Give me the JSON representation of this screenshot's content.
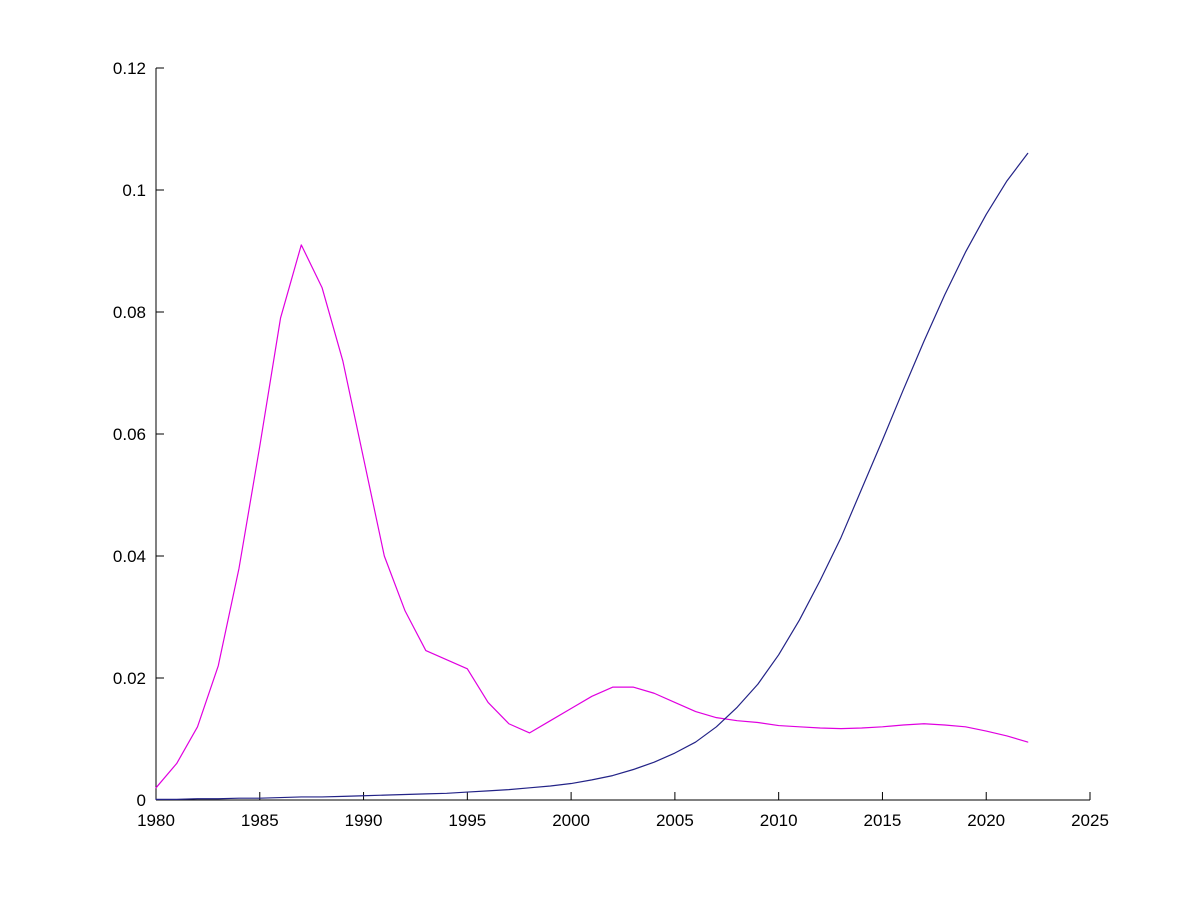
{
  "figure": {
    "background": "#ffffff",
    "axis_color": "#000000",
    "tick_label_color": "#000000"
  },
  "chart_data": {
    "type": "line",
    "title": "",
    "xlabel": "",
    "ylabel": "",
    "grid": false,
    "legend": null,
    "xlim": [
      1980,
      2025
    ],
    "ylim": [
      0,
      0.12
    ],
    "xticks": [
      1980,
      1985,
      1990,
      1995,
      2000,
      2005,
      2010,
      2015,
      2020,
      2025
    ],
    "xtick_labels": [
      "1980",
      "1985",
      "1990",
      "1995",
      "2000",
      "2005",
      "2010",
      "2015",
      "2020",
      "2025"
    ],
    "yticks": [
      0,
      0.02,
      0.04,
      0.06,
      0.08,
      0.1,
      0.12
    ],
    "ytick_labels": [
      "0",
      "0.02",
      "0.04",
      "0.06",
      "0.08",
      "0.1",
      "0.12"
    ],
    "x": [
      1980,
      1981,
      1982,
      1983,
      1984,
      1985,
      1986,
      1987,
      1988,
      1989,
      1990,
      1991,
      1992,
      1993,
      1994,
      1995,
      1996,
      1997,
      1998,
      1999,
      2000,
      2001,
      2002,
      2003,
      2004,
      2005,
      2006,
      2007,
      2008,
      2009,
      2010,
      2011,
      2012,
      2013,
      2014,
      2015,
      2016,
      2017,
      2018,
      2019,
      2020,
      2021,
      2022
    ],
    "series": [
      {
        "name": "magenta-series",
        "color": "#e000e0",
        "values": [
          0.002,
          0.006,
          0.012,
          0.022,
          0.038,
          0.058,
          0.079,
          0.091,
          0.084,
          0.072,
          0.056,
          0.04,
          0.031,
          0.0245,
          0.023,
          0.0215,
          0.016,
          0.0125,
          0.011,
          0.013,
          0.015,
          0.017,
          0.0185,
          0.0185,
          0.0175,
          0.016,
          0.0145,
          0.0135,
          0.013,
          0.0127,
          0.0122,
          0.012,
          0.0118,
          0.0117,
          0.0118,
          0.012,
          0.0123,
          0.0125,
          0.0123,
          0.012,
          0.0113,
          0.0105,
          0.0095
        ]
      },
      {
        "name": "blue-series",
        "color": "#232387",
        "values": [
          0.0001,
          0.0001,
          0.0002,
          0.0002,
          0.0003,
          0.0003,
          0.0004,
          0.0005,
          0.0005,
          0.0006,
          0.0007,
          0.0008,
          0.0009,
          0.001,
          0.0011,
          0.0013,
          0.0015,
          0.0017,
          0.002,
          0.0023,
          0.0027,
          0.0033,
          0.004,
          0.005,
          0.0062,
          0.0077,
          0.0095,
          0.012,
          0.0152,
          0.019,
          0.0238,
          0.0295,
          0.036,
          0.043,
          0.051,
          0.059,
          0.0672,
          0.0752,
          0.0828,
          0.0898,
          0.096,
          0.1015,
          0.106
        ]
      }
    ]
  }
}
